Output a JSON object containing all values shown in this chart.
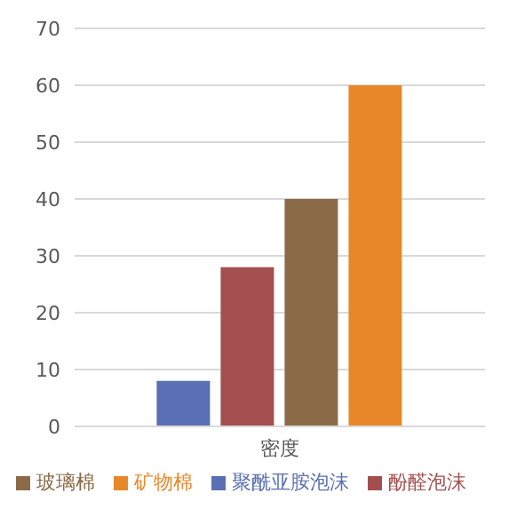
{
  "chart_data": {
    "type": "bar",
    "categories": [
      "密度"
    ],
    "series": [
      {
        "name": "聚酰亚胺泡沫",
        "color": "#5a70b4",
        "values": [
          8
        ]
      },
      {
        "name": "酚醛泡沫",
        "color": "#a44f4f",
        "values": [
          28
        ]
      },
      {
        "name": "玻璃棉",
        "color": "#8a6a47",
        "values": [
          40
        ]
      },
      {
        "name": "矿物棉",
        "color": "#e8872a",
        "values": [
          60
        ]
      }
    ],
    "ylim": [
      0,
      70
    ],
    "yticks": [
      0,
      10,
      20,
      30,
      40,
      50,
      60,
      70
    ],
    "grid": "y",
    "legend": "bottom"
  }
}
